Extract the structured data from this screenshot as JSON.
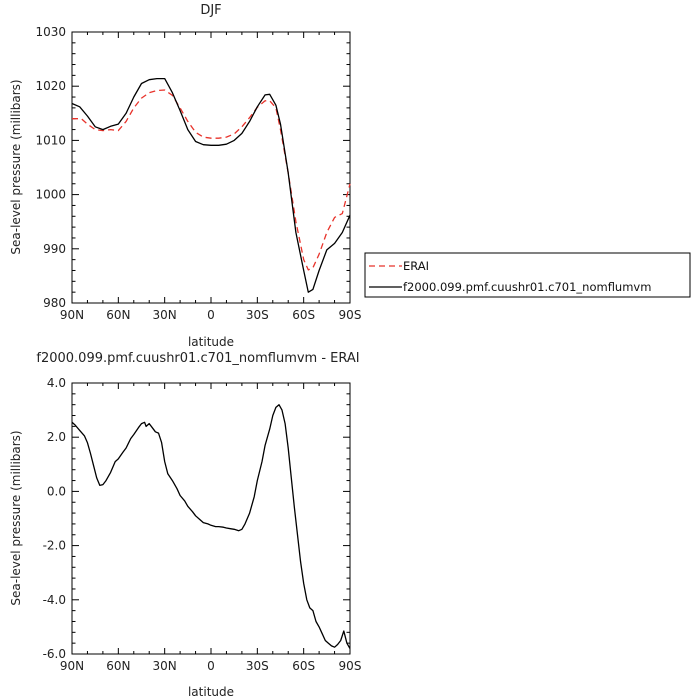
{
  "chart_data": [
    {
      "type": "line",
      "title": "DJF",
      "xlabel": "latitude",
      "ylabel": "Sea-level pressure (millibars)",
      "xlim": [
        90,
        -90
      ],
      "ylim": [
        980,
        1030
      ],
      "xticks": [
        {
          "v": 90,
          "label": "90N"
        },
        {
          "v": 60,
          "label": "60N"
        },
        {
          "v": 30,
          "label": "30N"
        },
        {
          "v": 0,
          "label": "0"
        },
        {
          "v": -30,
          "label": "30S"
        },
        {
          "v": -60,
          "label": "60S"
        },
        {
          "v": -90,
          "label": "90S"
        }
      ],
      "yticks": [
        {
          "v": 980,
          "label": "980"
        },
        {
          "v": 990,
          "label": "990"
        },
        {
          "v": 1000,
          "label": "1000"
        },
        {
          "v": 1010,
          "label": "1010"
        },
        {
          "v": 1020,
          "label": "1020"
        },
        {
          "v": 1030,
          "label": "1030"
        }
      ],
      "legend": "right",
      "series": [
        {
          "name": "ERAI",
          "color": "#e8332b",
          "dash": "dashed",
          "x": [
            90,
            84,
            80,
            75,
            70,
            65,
            60,
            55,
            50,
            45,
            40,
            35,
            30,
            25,
            20,
            15,
            10,
            5,
            0,
            -5,
            -10,
            -15,
            -20,
            -25,
            -30,
            -35,
            -38,
            -42,
            -45,
            -50,
            -55,
            -60,
            -63,
            -66,
            -70,
            -75,
            -80,
            -85,
            -90
          ],
          "y": [
            1014,
            1014,
            1013,
            1012,
            1011.8,
            1012,
            1011.8,
            1013.5,
            1016,
            1017.8,
            1018.8,
            1019.2,
            1019.3,
            1018.3,
            1016,
            1013.5,
            1011.5,
            1010.6,
            1010.4,
            1010.4,
            1010.6,
            1011.2,
            1012.5,
            1014.2,
            1016.1,
            1017.3,
            1017.3,
            1016,
            1012,
            1004,
            995,
            988,
            986.1,
            986.5,
            989,
            993,
            995.8,
            996.5,
            1002
          ]
        },
        {
          "name": "f2000.099.pmf.cuushr01.c701_nomflumvm",
          "color": "#000000",
          "dash": "solid",
          "x": [
            90,
            85,
            80,
            75,
            70,
            65,
            60,
            55,
            50,
            45,
            40,
            35,
            30,
            25,
            20,
            15,
            10,
            5,
            0,
            -5,
            -10,
            -15,
            -20,
            -25,
            -30,
            -35,
            -38,
            -42,
            -45,
            -50,
            -55,
            -60,
            -63,
            -66,
            -70,
            -75,
            -80,
            -85,
            -90
          ],
          "y": [
            1016.8,
            1016.2,
            1014.5,
            1012.5,
            1012,
            1012.6,
            1013,
            1015,
            1018,
            1020.5,
            1021.2,
            1021.4,
            1021.4,
            1018.8,
            1015.5,
            1012,
            1009.8,
            1009.2,
            1009.1,
            1009.1,
            1009.3,
            1010,
            1011.3,
            1013.5,
            1016.2,
            1018.4,
            1018.5,
            1016.5,
            1013,
            1004,
            993,
            986,
            982,
            982.5,
            986,
            989.8,
            991,
            993,
            996.2
          ]
        }
      ]
    },
    {
      "type": "line",
      "title": "f2000.099.pmf.cuushr01.c701_nomflumvm - ERAI",
      "xlabel": "latitude",
      "ylabel": "Sea-level pressure (millibars)",
      "xlim": [
        90,
        -90
      ],
      "ylim": [
        -6,
        4
      ],
      "xticks": [
        {
          "v": 90,
          "label": "90N"
        },
        {
          "v": 60,
          "label": "60N"
        },
        {
          "v": 30,
          "label": "30N"
        },
        {
          "v": 0,
          "label": "0"
        },
        {
          "v": -30,
          "label": "30S"
        },
        {
          "v": -60,
          "label": "60S"
        },
        {
          "v": -90,
          "label": "90S"
        }
      ],
      "yticks": [
        {
          "v": -6,
          "label": "-6.0"
        },
        {
          "v": -4,
          "label": "-4.0"
        },
        {
          "v": -2,
          "label": "-2.0"
        },
        {
          "v": 0,
          "label": "0.0"
        },
        {
          "v": 2,
          "label": "2.0"
        },
        {
          "v": 4,
          "label": "4.0"
        }
      ],
      "series": [
        {
          "color": "#000000",
          "dash": "solid",
          "x": [
            90,
            88,
            85,
            82,
            80,
            78,
            76,
            74,
            72,
            70,
            68,
            65,
            62,
            60,
            57,
            55,
            52,
            50,
            47,
            45,
            43,
            42,
            40,
            38,
            36,
            34,
            32,
            30,
            28,
            25,
            22,
            20,
            17,
            15,
            12,
            10,
            7,
            5,
            2,
            0,
            -3,
            -5,
            -8,
            -10,
            -13,
            -15,
            -18,
            -20,
            -22,
            -25,
            -28,
            -30,
            -33,
            -35,
            -38,
            -40,
            -42,
            -44,
            -46,
            -48,
            -50,
            -52,
            -54,
            -56,
            -58,
            -60,
            -62,
            -64,
            -66,
            -68,
            -70,
            -72,
            -74,
            -76,
            -78,
            -80,
            -82,
            -84,
            -86,
            -88,
            -90
          ],
          "y": [
            2.55,
            2.45,
            2.25,
            2.05,
            1.8,
            1.4,
            0.95,
            0.5,
            0.22,
            0.25,
            0.4,
            0.7,
            1.1,
            1.2,
            1.45,
            1.6,
            1.95,
            2.1,
            2.35,
            2.5,
            2.55,
            2.4,
            2.5,
            2.35,
            2.2,
            2.15,
            1.8,
            1.1,
            0.65,
            0.4,
            0.1,
            -0.15,
            -0.35,
            -0.55,
            -0.75,
            -0.9,
            -1.05,
            -1.15,
            -1.2,
            -1.25,
            -1.3,
            -1.3,
            -1.32,
            -1.35,
            -1.38,
            -1.4,
            -1.45,
            -1.4,
            -1.2,
            -0.8,
            -0.2,
            0.4,
            1.1,
            1.7,
            2.3,
            2.8,
            3.1,
            3.2,
            3.0,
            2.5,
            1.6,
            0.5,
            -0.6,
            -1.6,
            -2.6,
            -3.4,
            -4.0,
            -4.3,
            -4.4,
            -4.8,
            -5.0,
            -5.25,
            -5.5,
            -5.6,
            -5.7,
            -5.75,
            -5.65,
            -5.5,
            -5.15,
            -5.6,
            -5.8
          ]
        }
      ]
    }
  ]
}
